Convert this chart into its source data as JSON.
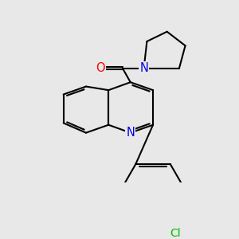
{
  "background_color": "#e8e8e8",
  "bond_color": "#000000",
  "bond_width": 1.5,
  "atom_colors": {
    "N": "#0000ee",
    "O": "#ff0000",
    "Cl": "#00bb00",
    "C": "#000000"
  },
  "font_size_atom": 10.5,
  "font_size_cl": 10,
  "xlim": [
    0,
    10
  ],
  "ylim": [
    0,
    10
  ]
}
